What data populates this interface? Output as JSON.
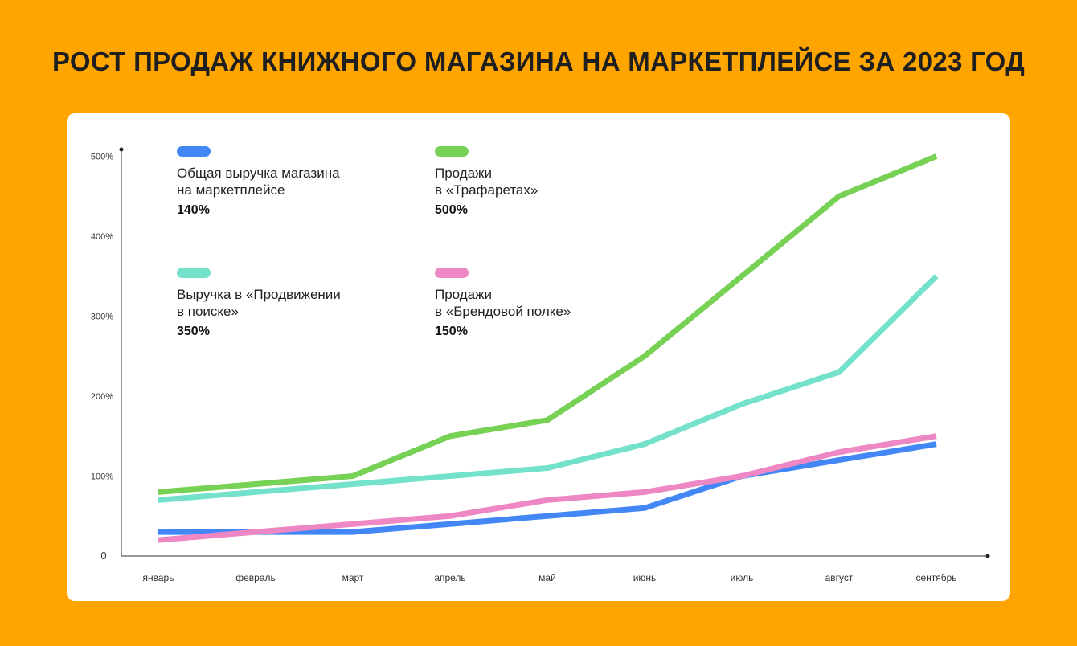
{
  "title": "РОСТ ПРОДАЖ КНИЖНОГО МАГАЗИНА НА МАРКЕТПЛЕЙСЕ ЗА 2023 ГОД",
  "colors": {
    "background": "#FFA500",
    "card": "#FFFFFF"
  },
  "legend": [
    {
      "label": "Общая выручка магазина\nна маркетплейсе",
      "value": "140%",
      "color": "#4287F5"
    },
    {
      "label": "Продажи\nв «Трафаретах»",
      "value": "500%",
      "color": "#76D154"
    },
    {
      "label": "Выручка в «Продвижении\nв поиске»",
      "value": "350%",
      "color": "#74E2CB"
    },
    {
      "label": "Продажи\nв «Брендовой полке»",
      "value": "150%",
      "color": "#EE88C4"
    }
  ],
  "chart_data": {
    "type": "line",
    "title": "РОСТ ПРОДАЖ КНИЖНОГО МАГАЗИНА НА МАРКЕТПЛЕЙСЕ ЗА 2023 ГОД",
    "xlabel": "",
    "ylabel": "",
    "categories": [
      "январь",
      "февраль",
      "март",
      "апрель",
      "май",
      "июнь",
      "июль",
      "август",
      "сентябрь"
    ],
    "y_ticks": [
      {
        "value": 0,
        "label": "0"
      },
      {
        "value": 100,
        "label": "100%"
      },
      {
        "value": 200,
        "label": "200%"
      },
      {
        "value": 300,
        "label": "300%"
      },
      {
        "value": 400,
        "label": "400%"
      },
      {
        "value": 500,
        "label": "500%"
      }
    ],
    "ylim": [
      0,
      500
    ],
    "grid": false,
    "series": [
      {
        "name": "Общая выручка магазина на маркетплейсе",
        "color": "#4287F5",
        "values": [
          30,
          30,
          30,
          40,
          50,
          60,
          100,
          120,
          140
        ]
      },
      {
        "name": "Выручка в «Продвижении в поиске»",
        "color": "#74E2CB",
        "values": [
          70,
          80,
          90,
          100,
          110,
          140,
          190,
          230,
          350
        ]
      },
      {
        "name": "Продажи в «Брендовой полке»",
        "color": "#EE88C4",
        "values": [
          20,
          30,
          40,
          50,
          70,
          80,
          100,
          130,
          150
        ]
      },
      {
        "name": "Продажи в «Трафаретах»",
        "color": "#76D154",
        "values": [
          80,
          90,
          100,
          150,
          170,
          250,
          350,
          450,
          500
        ]
      }
    ]
  }
}
